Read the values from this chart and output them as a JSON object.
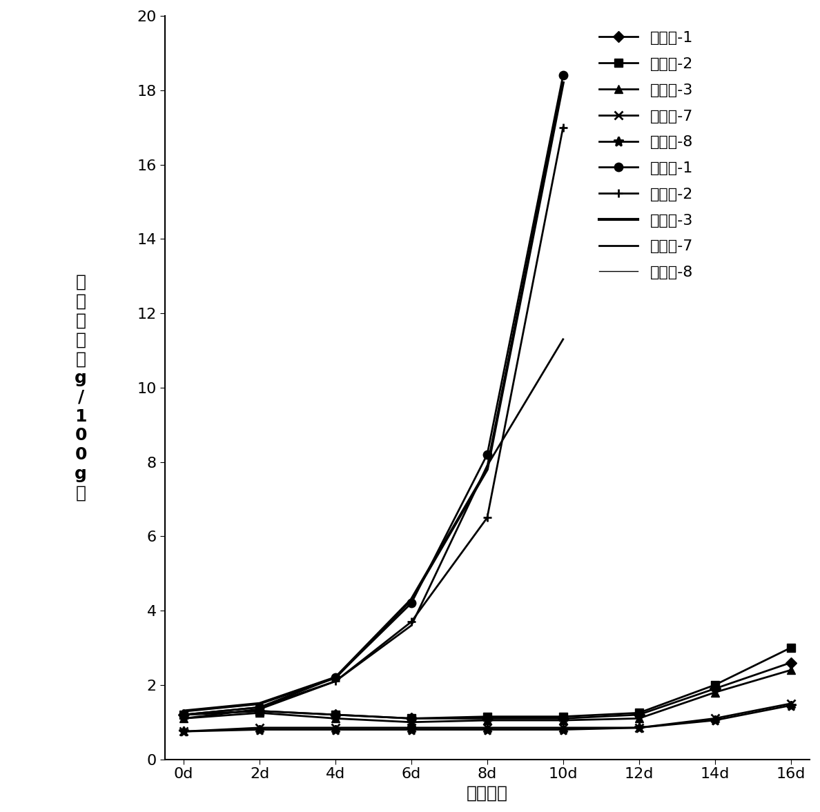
{
  "x": [
    0,
    2,
    4,
    6,
    8,
    10,
    12,
    14,
    16
  ],
  "series": {
    "实施例-1": {
      "y": [
        1.2,
        1.3,
        1.2,
        1.1,
        1.1,
        1.1,
        1.2,
        1.9,
        2.6
      ],
      "marker": "D",
      "color": "#000000",
      "linewidth": 2,
      "markersize": 8
    },
    "实施例-2": {
      "y": [
        1.2,
        1.3,
        1.2,
        1.1,
        1.15,
        1.15,
        1.25,
        2.0,
        3.0
      ],
      "marker": "s",
      "color": "#000000",
      "linewidth": 2,
      "markersize": 8
    },
    "实施例-3": {
      "y": [
        1.1,
        1.25,
        1.1,
        1.0,
        1.05,
        1.05,
        1.1,
        1.8,
        2.4
      ],
      "marker": "^",
      "color": "#000000",
      "linewidth": 2,
      "markersize": 8
    },
    "实施例-7": {
      "y": [
        0.75,
        0.85,
        0.85,
        0.85,
        0.85,
        0.85,
        0.85,
        1.1,
        1.5
      ],
      "marker": "x",
      "color": "#000000",
      "linewidth": 2,
      "markersize": 9
    },
    "实施例-8": {
      "y": [
        0.75,
        0.8,
        0.8,
        0.8,
        0.8,
        0.8,
        0.85,
        1.05,
        1.45
      ],
      "marker": "*",
      "color": "#000000",
      "linewidth": 2,
      "markersize": 10
    },
    "对照组-1": {
      "y": [
        1.2,
        1.4,
        2.2,
        4.2,
        8.2,
        18.4,
        null,
        null,
        null
      ],
      "marker": "o",
      "color": "#000000",
      "linewidth": 2,
      "markersize": 9
    },
    "对照组-2": {
      "y": [
        1.1,
        1.35,
        2.1,
        3.7,
        6.5,
        17.0,
        null,
        null,
        null
      ],
      "marker": "P",
      "color": "#000000",
      "linewidth": 2,
      "markersize": 9
    },
    "对照组-3": {
      "y": [
        1.3,
        1.5,
        2.2,
        4.3,
        7.8,
        18.2,
        null,
        null,
        null
      ],
      "marker": "none",
      "color": "#000000",
      "linewidth": 3,
      "markersize": 0
    },
    "对照组-7": {
      "y": [
        1.2,
        1.4,
        2.1,
        3.6,
        7.9,
        11.3,
        null,
        null,
        null
      ],
      "marker": "none",
      "color": "#000000",
      "linewidth": 2,
      "markersize": 0
    },
    "对照组-8": {
      "y": [
        null,
        null,
        null,
        null,
        null,
        null,
        null,
        null,
        null
      ],
      "marker": "none",
      "color": "#000000",
      "linewidth": 1,
      "markersize": 0
    }
  },
  "x_ticks": [
    0,
    2,
    4,
    6,
    8,
    10,
    12,
    14,
    16
  ],
  "x_tick_labels": [
    "0d",
    "2d",
    "4d",
    "6d",
    "8d",
    "10d",
    "12d",
    "14d",
    "16d"
  ],
  "y_ticks": [
    0,
    2,
    4,
    6,
    8,
    10,
    12,
    14,
    16,
    18,
    20
  ],
  "ylim": [
    0,
    20
  ],
  "xlabel": "加速时间",
  "ylabel": "过\n氧\n化\n値\n（\ng\n/\n1\n0\n0\ng\n）",
  "figsize": [
    11.88,
    11.77
  ],
  "dpi": 100,
  "font_size": 18,
  "tick_font_size": 16,
  "legend_font_size": 16
}
